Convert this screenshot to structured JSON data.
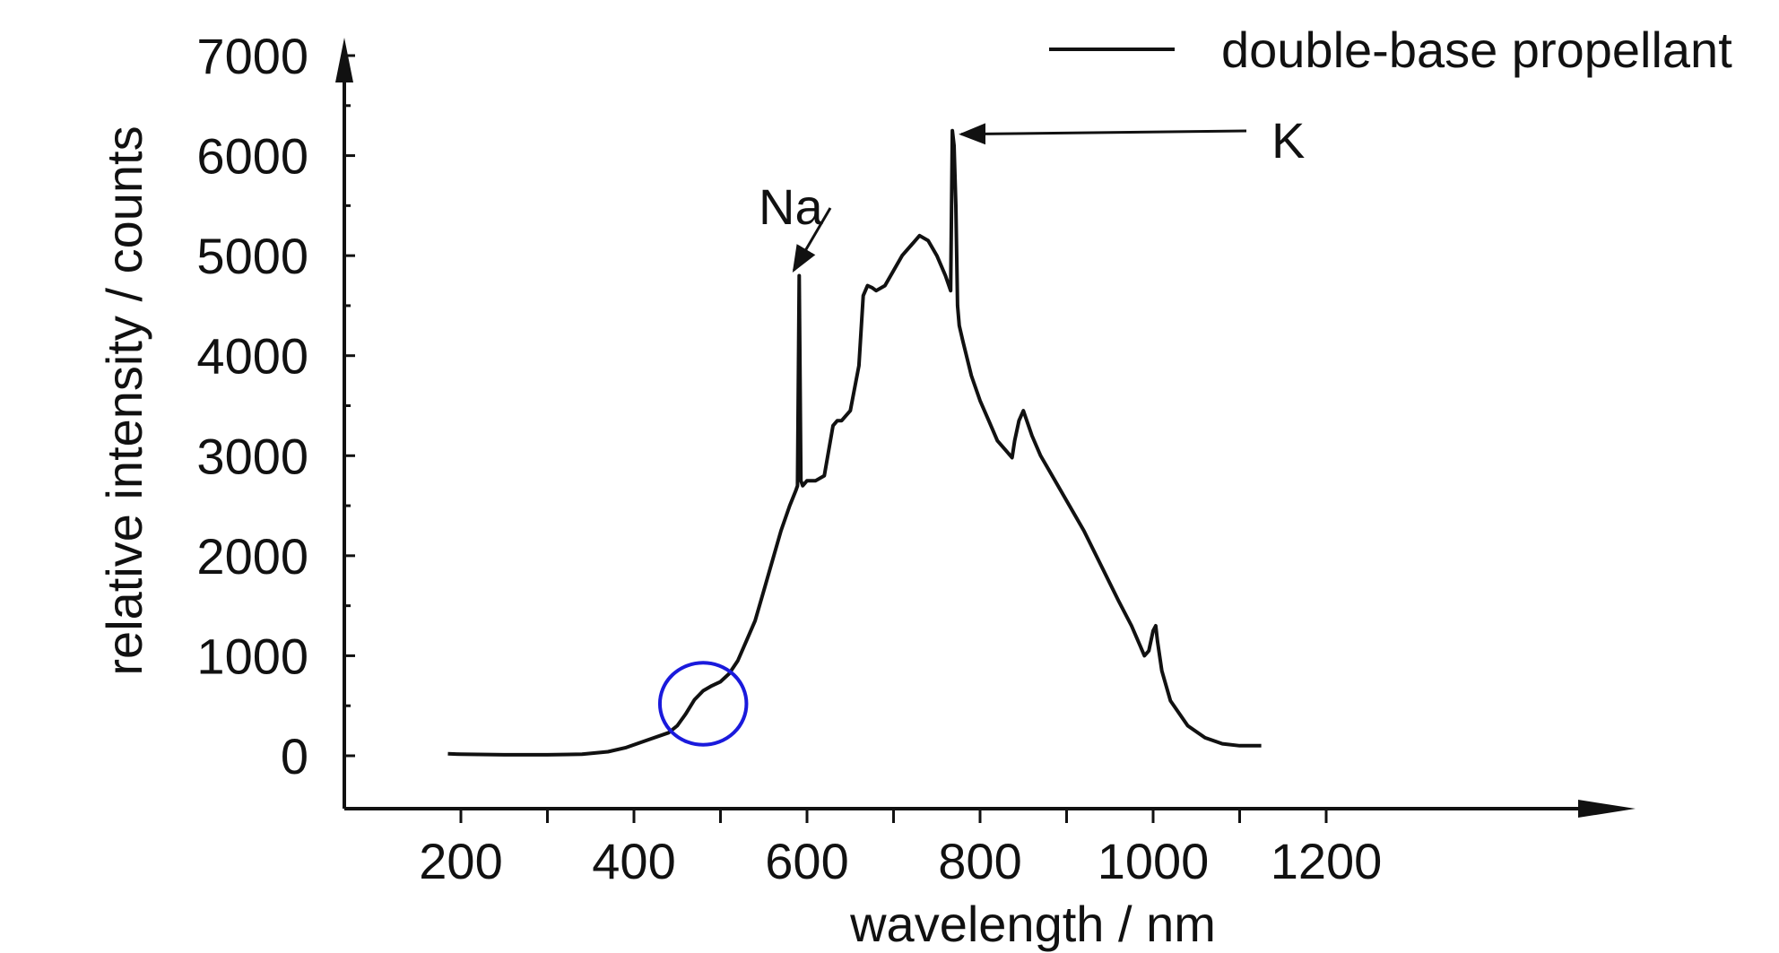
{
  "chart_data": {
    "type": "line",
    "title": "",
    "xlabel": "wavelength / nm",
    "ylabel": "relative intensity / counts",
    "xlim": [
      100,
      1200
    ],
    "ylim": [
      -500,
      7000
    ],
    "x_ticks": [
      200,
      400,
      600,
      800,
      1000,
      1200
    ],
    "y_ticks": [
      0,
      1000,
      2000,
      3000,
      4000,
      5000,
      6000,
      7000
    ],
    "grid": false,
    "legend_position": "top-right",
    "colors": {
      "series": "#111111",
      "highlight": "#1a1adc"
    },
    "series": [
      {
        "name": "double-base propellant",
        "x": [
          185,
          200,
          250,
          300,
          340,
          370,
          390,
          400,
          420,
          440,
          450,
          460,
          470,
          480,
          490,
          500,
          510,
          520,
          530,
          540,
          550,
          560,
          570,
          580,
          587,
          589,
          591,
          593,
          595,
          600,
          610,
          620,
          630,
          635,
          640,
          650,
          660,
          665,
          670,
          675,
          680,
          690,
          700,
          710,
          720,
          730,
          740,
          750,
          760,
          766,
          768,
          770,
          772,
          774,
          776,
          780,
          790,
          800,
          810,
          820,
          830,
          837,
          840,
          845,
          850,
          860,
          870,
          880,
          900,
          920,
          940,
          960,
          975,
          990,
          995,
          1000,
          1003,
          1005,
          1010,
          1020,
          1040,
          1060,
          1080,
          1100,
          1125
        ],
        "y": [
          20,
          15,
          10,
          10,
          15,
          40,
          80,
          110,
          170,
          230,
          300,
          420,
          560,
          650,
          700,
          740,
          820,
          950,
          1150,
          1350,
          1650,
          1950,
          2250,
          2500,
          2650,
          2700,
          4800,
          2750,
          2700,
          2750,
          2750,
          2800,
          3300,
          3350,
          3350,
          3450,
          3900,
          4600,
          4700,
          4680,
          4650,
          4700,
          4850,
          5000,
          5100,
          5200,
          5150,
          5000,
          4800,
          4650,
          6250,
          6100,
          5500,
          4500,
          4300,
          4150,
          3800,
          3550,
          3350,
          3150,
          3050,
          2980,
          3150,
          3350,
          3450,
          3200,
          3000,
          2850,
          2550,
          2250,
          1900,
          1550,
          1300,
          1000,
          1050,
          1250,
          1300,
          1150,
          850,
          550,
          300,
          180,
          120,
          100,
          100
        ]
      }
    ],
    "annotations": [
      {
        "text": "Na",
        "x": 591,
        "y": 4800
      },
      {
        "text": "K",
        "x": 768,
        "y": 6250
      }
    ],
    "highlight_ellipse": {
      "center_x": 480,
      "center_y": 520,
      "radius_x": 50,
      "radius_y": 410
    }
  }
}
